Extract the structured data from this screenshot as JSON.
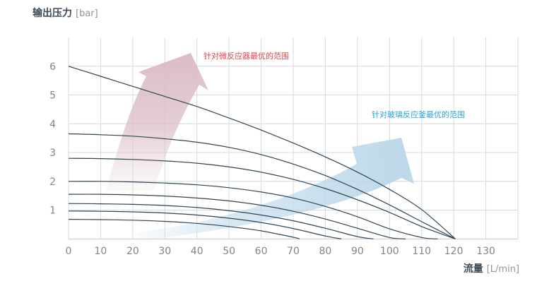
{
  "chart_data": {
    "type": "line",
    "ylabel_main": "输出压力",
    "ylabel_unit": "[bar]",
    "xlabel_main": "流量",
    "xlabel_unit": "[L/min]",
    "xlim": [
      0,
      140
    ],
    "ylim": [
      -0.9,
      7
    ],
    "x_ticks": [
      0,
      10,
      20,
      30,
      40,
      50,
      60,
      70,
      80,
      90,
      100,
      110,
      120,
      130
    ],
    "y_ticks": [
      1,
      2,
      3,
      4,
      5,
      6
    ],
    "grid": true,
    "annotations": [
      {
        "text": "针对微反应器最优的范围",
        "color": "#e0434c"
      },
      {
        "text": "针对玻璃反应釜最优的范围",
        "color": "#27a3d4"
      }
    ],
    "series": [
      {
        "x": [
          0,
          10,
          20,
          30,
          40,
          50,
          60,
          70,
          80,
          90,
          100,
          110,
          120.5
        ],
        "y": [
          6.0,
          5.65,
          5.3,
          4.95,
          4.6,
          4.2,
          3.78,
          3.33,
          2.85,
          2.32,
          1.72,
          1.02,
          0.0
        ]
      },
      {
        "x": [
          0,
          10,
          20,
          30,
          40,
          50,
          60,
          70,
          80,
          90,
          100,
          110,
          120.5
        ],
        "y": [
          3.65,
          3.62,
          3.57,
          3.48,
          3.36,
          3.18,
          2.93,
          2.6,
          2.2,
          1.72,
          1.18,
          0.6,
          0.0
        ]
      },
      {
        "x": [
          0,
          10,
          20,
          30,
          40,
          50,
          60,
          70,
          80,
          90,
          100,
          110,
          120.5
        ],
        "y": [
          2.8,
          2.79,
          2.76,
          2.71,
          2.63,
          2.5,
          2.32,
          2.07,
          1.75,
          1.36,
          0.92,
          0.43,
          0.0
        ]
      },
      {
        "x": [
          0,
          10,
          20,
          30,
          40,
          50,
          60,
          70,
          80,
          90,
          100,
          110,
          115
        ],
        "y": [
          2.0,
          2.0,
          1.98,
          1.94,
          1.88,
          1.78,
          1.63,
          1.42,
          1.13,
          0.77,
          0.35,
          0.05,
          0.0
        ]
      },
      {
        "x": [
          0,
          10,
          20,
          30,
          40,
          50,
          60,
          70,
          80,
          90,
          100,
          105
        ],
        "y": [
          1.55,
          1.55,
          1.53,
          1.49,
          1.42,
          1.32,
          1.17,
          0.96,
          0.69,
          0.37,
          0.05,
          0.0
        ]
      },
      {
        "x": [
          0,
          10,
          20,
          30,
          40,
          50,
          60,
          70,
          80,
          90,
          95
        ],
        "y": [
          1.23,
          1.22,
          1.2,
          1.16,
          1.09,
          0.98,
          0.83,
          0.63,
          0.37,
          0.08,
          0.0
        ]
      },
      {
        "x": [
          0,
          10,
          20,
          30,
          40,
          50,
          60,
          70,
          80,
          85
        ],
        "y": [
          0.97,
          0.96,
          0.94,
          0.9,
          0.83,
          0.72,
          0.57,
          0.36,
          0.1,
          0.0
        ]
      },
      {
        "x": [
          0,
          10,
          20,
          30,
          40,
          50,
          60,
          70,
          72
        ],
        "y": [
          0.68,
          0.67,
          0.65,
          0.61,
          0.54,
          0.43,
          0.28,
          0.06,
          0.0
        ]
      }
    ]
  }
}
